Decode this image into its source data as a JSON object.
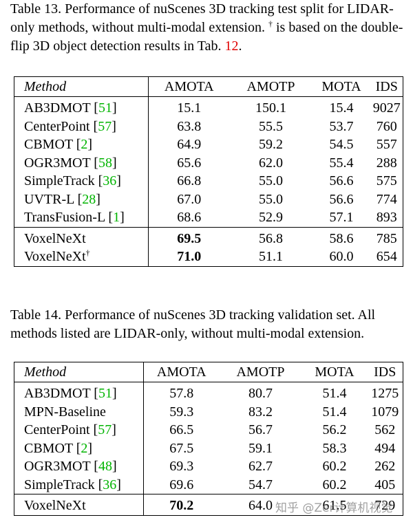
{
  "table13": {
    "caption": [
      "Table 13.  Performance of nuScenes 3D tracking test split for LIDAR-only methods, without multi-modal extension. ",
      {
        "text": "†",
        "sup": true
      },
      " is based on the double-flip 3D object detection results in Tab. ",
      {
        "text": "12",
        "color": "#e00000"
      },
      "."
    ],
    "columns": [
      "Method",
      "AMOTA",
      "AMOTP",
      "MOTA",
      "IDS"
    ],
    "row_groups": [
      [
        {
          "method": [
            "AB3DMOT [",
            {
              "text": "51",
              "color": "#00b400"
            },
            "]"
          ],
          "values": [
            "15.1",
            "150.1",
            "15.4",
            "9027"
          ]
        },
        {
          "method": [
            "CenterPoint [",
            {
              "text": "57",
              "color": "#00b400"
            },
            "]"
          ],
          "values": [
            "63.8",
            "55.5",
            "53.7",
            "760"
          ]
        },
        {
          "method": [
            "CBMOT [",
            {
              "text": "2",
              "color": "#00b400"
            },
            "]"
          ],
          "values": [
            "64.9",
            "59.2",
            "54.5",
            "557"
          ]
        },
        {
          "method": [
            "OGR3MOT [",
            {
              "text": "58",
              "color": "#00b400"
            },
            "]"
          ],
          "values": [
            "65.6",
            "62.0",
            "55.4",
            "288"
          ]
        },
        {
          "method": [
            "SimpleTrack [",
            {
              "text": "36",
              "color": "#00b400"
            },
            "]"
          ],
          "values": [
            "66.8",
            "55.0",
            "56.6",
            "575"
          ]
        },
        {
          "method": [
            "UVTR-L [",
            {
              "text": "28",
              "color": "#00b400"
            },
            "]"
          ],
          "values": [
            "67.0",
            "55.0",
            "56.6",
            "774"
          ]
        },
        {
          "method": [
            "TransFusion-L [",
            {
              "text": "1",
              "color": "#00b400"
            },
            "]"
          ],
          "values": [
            "68.6",
            "52.9",
            "57.1",
            "893"
          ]
        }
      ],
      [
        {
          "method": [
            "VoxelNeXt"
          ],
          "values": [
            {
              "text": "69.5",
              "bold": true
            },
            "56.8",
            "58.6",
            "785"
          ]
        },
        {
          "method": [
            "VoxelNeXt",
            {
              "text": "†",
              "sup": true
            }
          ],
          "values": [
            {
              "text": "71.0",
              "bold": true
            },
            "51.1",
            "60.0",
            "654"
          ]
        }
      ]
    ]
  },
  "table14": {
    "caption": [
      "Table 14. Performance of nuScenes 3D tracking validation set. All methods listed are LIDAR-only, without multi-modal extension."
    ],
    "columns": [
      "Method",
      "AMOTA",
      "AMOTP",
      "MOTA",
      "IDS"
    ],
    "row_groups": [
      [
        {
          "method": [
            "AB3DMOT [",
            {
              "text": "51",
              "color": "#00b400"
            },
            "]"
          ],
          "values": [
            "57.8",
            "80.7",
            "51.4",
            "1275"
          ]
        },
        {
          "method": [
            "MPN-Baseline"
          ],
          "values": [
            "59.3",
            "83.2",
            "51.4",
            "1079"
          ]
        },
        {
          "method": [
            "CenterPoint [",
            {
              "text": "57",
              "color": "#00b400"
            },
            "]"
          ],
          "values": [
            "66.5",
            "56.7",
            "56.2",
            "562"
          ]
        },
        {
          "method": [
            "CBMOT [",
            {
              "text": "2",
              "color": "#00b400"
            },
            "]"
          ],
          "values": [
            "67.5",
            "59.1",
            "58.3",
            "494"
          ]
        },
        {
          "method": [
            "OGR3MOT [",
            {
              "text": "48",
              "color": "#00b400"
            },
            "]"
          ],
          "values": [
            "69.3",
            "62.7",
            "60.2",
            "262"
          ]
        },
        {
          "method": [
            "SimpleTrack [",
            {
              "text": "36",
              "color": "#00b400"
            },
            "]"
          ],
          "values": [
            "69.6",
            "54.7",
            "60.2",
            "405"
          ]
        }
      ],
      [
        {
          "method": [
            "VoxelNeXt"
          ],
          "values": [
            {
              "text": "70.2",
              "bold": true
            },
            "64.0",
            "61.5",
            "729"
          ]
        }
      ]
    ]
  },
  "watermark": "知乎 @Zer计算机视觉"
}
